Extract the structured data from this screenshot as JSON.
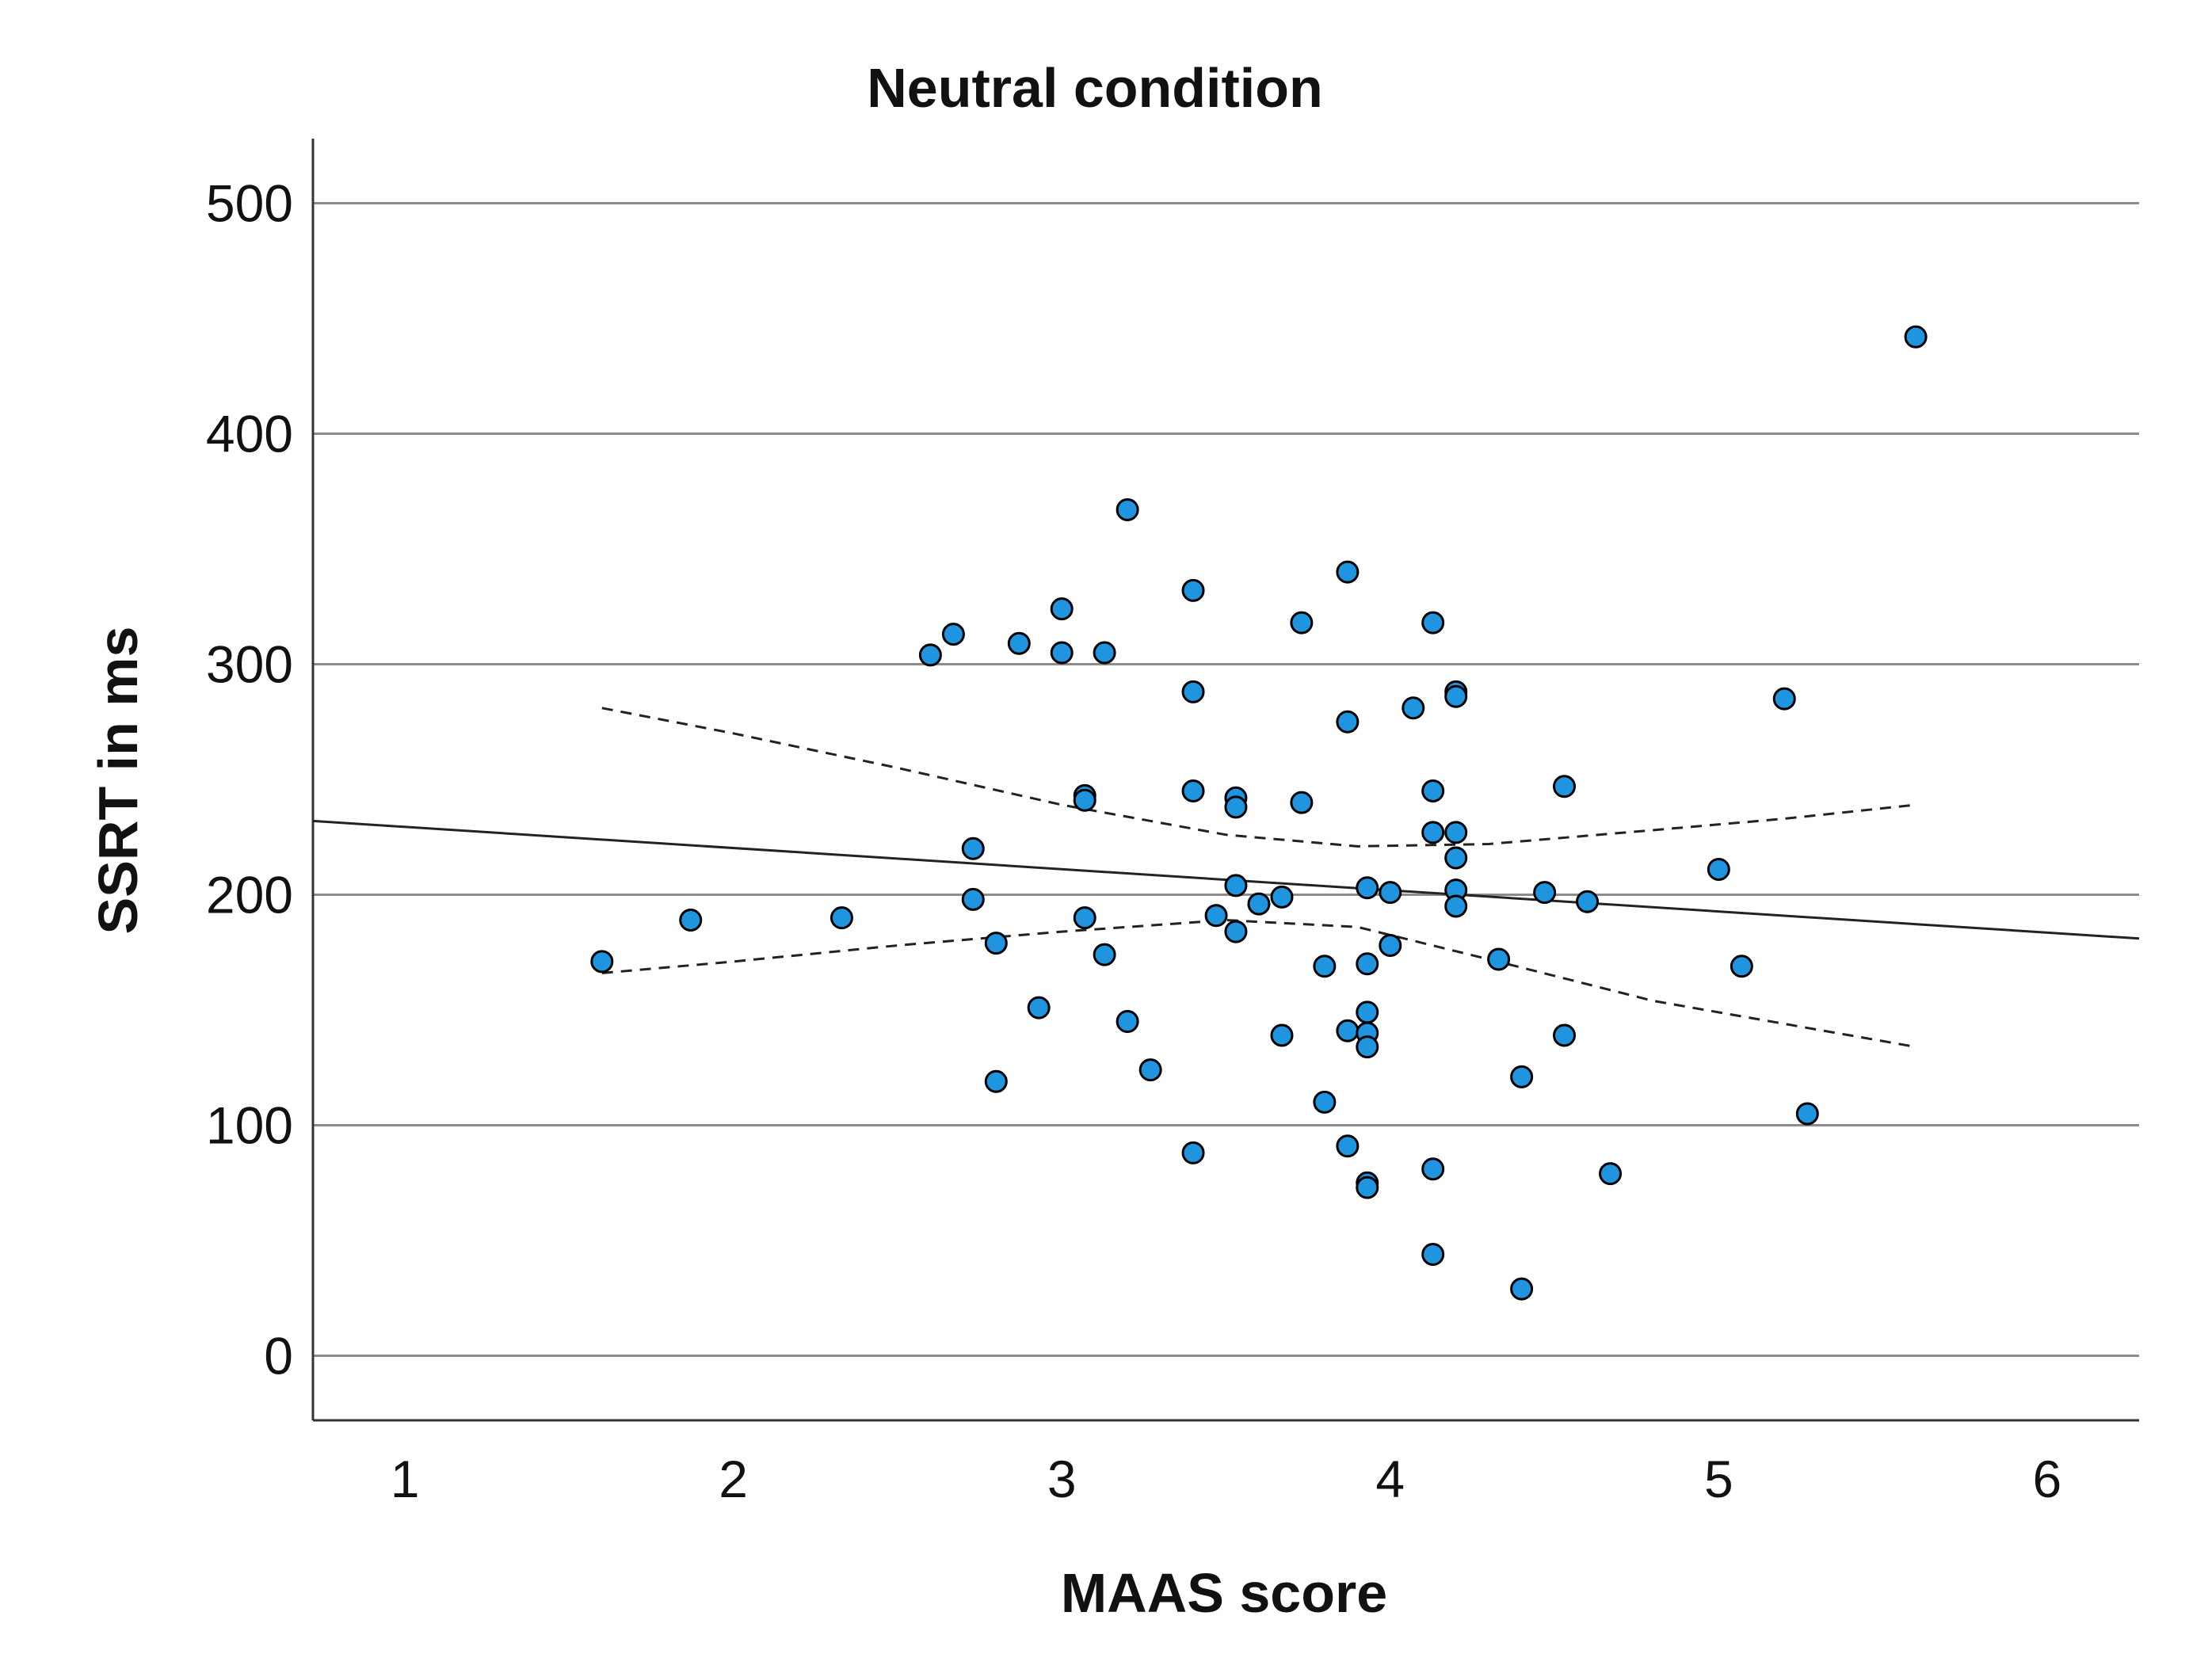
{
  "chart_data": {
    "type": "scatter",
    "title": "Neutral condition",
    "xlabel": "MAAS score",
    "ylabel": "SSRT in ms",
    "xlim": [
      0.72,
      6.28
    ],
    "ylim": [
      -28,
      528
    ],
    "xticks": [
      1,
      2,
      3,
      4,
      5,
      6
    ],
    "yticks": [
      0,
      100,
      200,
      300,
      400,
      500
    ],
    "grid": "horizontal",
    "points": [
      {
        "x": 1.6,
        "y": 171
      },
      {
        "x": 1.87,
        "y": 189
      },
      {
        "x": 2.33,
        "y": 190
      },
      {
        "x": 2.6,
        "y": 304
      },
      {
        "x": 2.67,
        "y": 313
      },
      {
        "x": 2.73,
        "y": 220
      },
      {
        "x": 2.73,
        "y": 198
      },
      {
        "x": 2.8,
        "y": 179
      },
      {
        "x": 2.8,
        "y": 119
      },
      {
        "x": 2.87,
        "y": 309
      },
      {
        "x": 2.93,
        "y": 151
      },
      {
        "x": 3.0,
        "y": 324
      },
      {
        "x": 3.0,
        "y": 305
      },
      {
        "x": 3.07,
        "y": 243
      },
      {
        "x": 3.07,
        "y": 241
      },
      {
        "x": 3.07,
        "y": 190
      },
      {
        "x": 3.13,
        "y": 305
      },
      {
        "x": 3.13,
        "y": 174
      },
      {
        "x": 3.2,
        "y": 367
      },
      {
        "x": 3.2,
        "y": 145
      },
      {
        "x": 3.27,
        "y": 124
      },
      {
        "x": 3.4,
        "y": 332
      },
      {
        "x": 3.4,
        "y": 288
      },
      {
        "x": 3.4,
        "y": 245
      },
      {
        "x": 3.4,
        "y": 88
      },
      {
        "x": 3.47,
        "y": 191
      },
      {
        "x": 3.53,
        "y": 242
      },
      {
        "x": 3.53,
        "y": 238
      },
      {
        "x": 3.53,
        "y": 204
      },
      {
        "x": 3.53,
        "y": 184
      },
      {
        "x": 3.6,
        "y": 196
      },
      {
        "x": 3.67,
        "y": 199
      },
      {
        "x": 3.67,
        "y": 139
      },
      {
        "x": 3.73,
        "y": 318
      },
      {
        "x": 3.73,
        "y": 240
      },
      {
        "x": 3.8,
        "y": 169
      },
      {
        "x": 3.8,
        "y": 110
      },
      {
        "x": 3.87,
        "y": 340
      },
      {
        "x": 3.87,
        "y": 275
      },
      {
        "x": 3.87,
        "y": 141
      },
      {
        "x": 3.87,
        "y": 91
      },
      {
        "x": 3.93,
        "y": 203
      },
      {
        "x": 3.93,
        "y": 170
      },
      {
        "x": 3.93,
        "y": 149
      },
      {
        "x": 3.93,
        "y": 140
      },
      {
        "x": 3.93,
        "y": 134
      },
      {
        "x": 3.93,
        "y": 75
      },
      {
        "x": 3.93,
        "y": 73
      },
      {
        "x": 4.0,
        "y": 201
      },
      {
        "x": 4.0,
        "y": 178
      },
      {
        "x": 4.07,
        "y": 281
      },
      {
        "x": 4.13,
        "y": 318
      },
      {
        "x": 4.13,
        "y": 245
      },
      {
        "x": 4.13,
        "y": 227
      },
      {
        "x": 4.13,
        "y": 81
      },
      {
        "x": 4.13,
        "y": 44
      },
      {
        "x": 4.2,
        "y": 288
      },
      {
        "x": 4.2,
        "y": 286
      },
      {
        "x": 4.2,
        "y": 227
      },
      {
        "x": 4.2,
        "y": 216
      },
      {
        "x": 4.2,
        "y": 202
      },
      {
        "x": 4.2,
        "y": 195
      },
      {
        "x": 4.33,
        "y": 172
      },
      {
        "x": 4.4,
        "y": 121
      },
      {
        "x": 4.4,
        "y": 29
      },
      {
        "x": 4.47,
        "y": 201
      },
      {
        "x": 4.53,
        "y": 247
      },
      {
        "x": 4.53,
        "y": 139
      },
      {
        "x": 4.6,
        "y": 197
      },
      {
        "x": 4.67,
        "y": 79
      },
      {
        "x": 5.0,
        "y": 211
      },
      {
        "x": 5.07,
        "y": 169
      },
      {
        "x": 5.2,
        "y": 285
      },
      {
        "x": 5.27,
        "y": 105
      },
      {
        "x": 5.6,
        "y": 442
      }
    ],
    "fit_line": {
      "x": [
        0.72,
        6.28
      ],
      "y": [
        232,
        181
      ]
    },
    "ci_upper": {
      "x": [
        1.6,
        2.0,
        2.5,
        3.0,
        3.5,
        3.9,
        4.3,
        4.8,
        5.2,
        5.6
      ],
      "y": [
        281,
        270,
        255,
        239,
        226,
        221,
        222,
        228,
        233,
        239
      ]
    },
    "ci_lower": {
      "x": [
        1.6,
        2.0,
        2.5,
        3.0,
        3.5,
        3.9,
        4.3,
        4.8,
        5.2,
        5.6
      ],
      "y": [
        166,
        171,
        178,
        184,
        189,
        186,
        172,
        154,
        144,
        134
      ]
    }
  }
}
